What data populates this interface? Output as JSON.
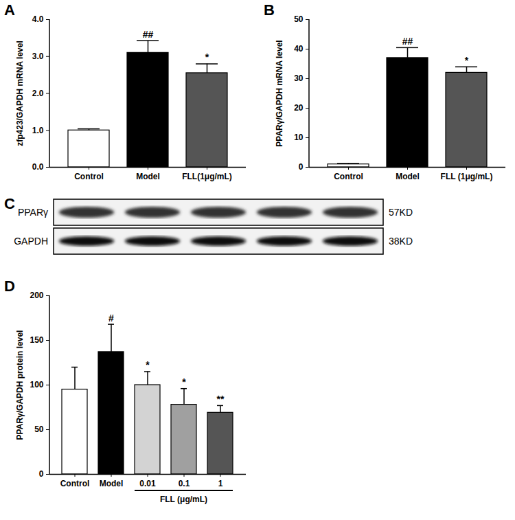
{
  "chart_data": [
    {
      "type": "bar",
      "panel": "A",
      "y_label": "zfp423/GAPDH mRNA level",
      "categories": [
        "Control",
        "Model",
        "FLL(1μg/mL)"
      ],
      "values": [
        1.0,
        3.1,
        2.55
      ],
      "errors": [
        0.04,
        0.33,
        0.25
      ],
      "colors": [
        "#ffffff",
        "#000000",
        "#555555"
      ],
      "significance": [
        null,
        "##",
        "*"
      ],
      "ylim": [
        0,
        4
      ],
      "yticks": [
        0,
        1,
        2,
        3,
        4
      ]
    },
    {
      "type": "bar",
      "panel": "B",
      "y_label": "PPARγ/GAPDH mRNA level",
      "categories": [
        "Control",
        "Model",
        "FLL (1μg/mL)"
      ],
      "values": [
        1.0,
        37,
        32
      ],
      "errors": [
        0.3,
        3.5,
        2
      ],
      "colors": [
        "#ffffff",
        "#000000",
        "#555555"
      ],
      "significance": [
        null,
        "##",
        "*"
      ],
      "ylim": [
        0,
        50
      ],
      "yticks": [
        0,
        10,
        20,
        30,
        40,
        50
      ]
    },
    {
      "type": "blot",
      "panel": "C",
      "lanes": 5,
      "bands": [
        {
          "label": "PPARγ",
          "size": "57KD"
        },
        {
          "label": "GAPDH",
          "size": "38KD"
        }
      ]
    },
    {
      "type": "bar",
      "panel": "D",
      "y_label": "PPARγ/GAPDH protein level",
      "categories": [
        "Control",
        "Model",
        "0.01",
        "0.1",
        "1"
      ],
      "values": [
        95,
        137,
        100,
        78,
        69
      ],
      "errors": [
        25,
        31,
        15,
        18,
        8
      ],
      "colors": [
        "#ffffff",
        "#000000",
        "#d3d3d3",
        "#a0a0a0",
        "#555555"
      ],
      "significance": [
        null,
        "#",
        "*",
        "*",
        "**"
      ],
      "group_label": {
        "text": "FLL (μg/mL)",
        "categories": [
          "0.01",
          "0.1",
          "1"
        ]
      },
      "ylim": [
        0,
        200
      ],
      "yticks": [
        0,
        50,
        100,
        150,
        200
      ]
    }
  ]
}
